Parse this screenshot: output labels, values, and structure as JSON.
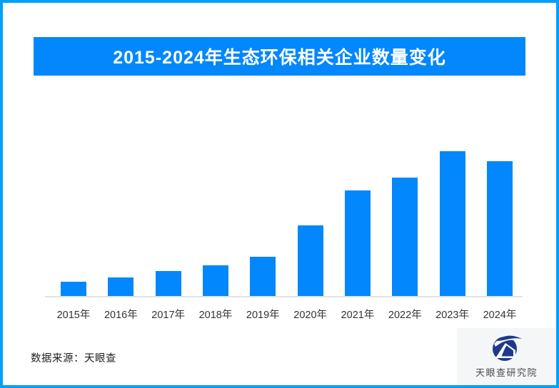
{
  "page": {
    "background": "#ffffff",
    "border_color": "#04A0F7"
  },
  "banner": {
    "title": "2015-2024年生态环保相关企业数量变化",
    "background": "#0387FC",
    "text_color": "#ffffff"
  },
  "chart_data": {
    "type": "bar",
    "title": "2015-2024年生态环保相关企业数量变化",
    "categories": [
      "2015年",
      "2016年",
      "2017年",
      "2018年",
      "2019年",
      "2020年",
      "2021年",
      "2022年",
      "2023年",
      "2024年"
    ],
    "values": [
      10,
      13,
      17,
      21,
      27,
      49,
      73,
      82,
      100,
      93
    ],
    "values_note": "no y-axis, gridlines or data labels are shown in the image; values are relative bar heights normalized to 2023 = 100",
    "bar_color": "#0387FC",
    "axis_line_color": "#E3E3E3",
    "tick_label_color": "#333333",
    "xlabel": "",
    "ylabel": "",
    "grid": false,
    "legend": false,
    "ylim": [
      0,
      100
    ]
  },
  "footer": {
    "source_label": "数据来源：天眼查"
  },
  "logo": {
    "text": "天眼查研究院",
    "icon_color": "#1D3A8A",
    "card_background": "#F5F6F8",
    "text_color": "#4A4A4A"
  }
}
